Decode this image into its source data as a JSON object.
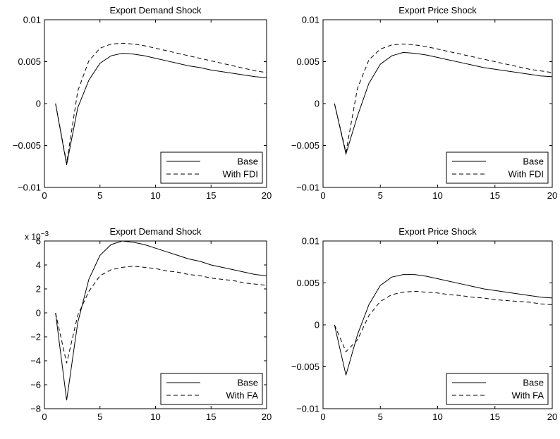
{
  "chart_data": [
    {
      "type": "line",
      "title": "Export Demand Shock",
      "xlim": [
        0,
        20
      ],
      "ylim": [
        -0.01,
        0.01
      ],
      "xticks": [
        0,
        5,
        10,
        15,
        20
      ],
      "yticks": [
        -0.01,
        -0.005,
        0,
        0.005,
        0.01
      ],
      "yticklabels": [
        "−0.01",
        "−0.005",
        "0",
        "0.005",
        "0.01"
      ],
      "exponent_label": "",
      "legend_position": "bottom-right",
      "x": [
        1,
        2,
        3,
        4,
        5,
        6,
        7,
        8,
        9,
        10,
        11,
        12,
        13,
        14,
        15,
        16,
        17,
        18,
        19,
        20
      ],
      "series": [
        {
          "name": "Base",
          "style": "solid",
          "values": [
            0,
            -0.0073,
            -0.0005,
            0.0028,
            0.0048,
            0.0057,
            0.006,
            0.0059,
            0.0057,
            0.0054,
            0.0051,
            0.0048,
            0.0045,
            0.0043,
            0.004,
            0.0038,
            0.0036,
            0.0034,
            0.0032,
            0.0031
          ]
        },
        {
          "name": "With FDI",
          "style": "dashed",
          "values": [
            0,
            -0.0071,
            0.0015,
            0.0051,
            0.0066,
            0.0071,
            0.0072,
            0.0071,
            0.0069,
            0.0066,
            0.0063,
            0.006,
            0.0057,
            0.0054,
            0.0051,
            0.0048,
            0.0045,
            0.0042,
            0.0039,
            0.0037
          ]
        }
      ]
    },
    {
      "type": "line",
      "title": "Export Price Shock",
      "xlim": [
        0,
        20
      ],
      "ylim": [
        -0.01,
        0.01
      ],
      "xticks": [
        0,
        5,
        10,
        15,
        20
      ],
      "yticks": [
        -0.01,
        -0.005,
        0,
        0.005,
        0.01
      ],
      "yticklabels": [
        "−0.01",
        "−0.005",
        "0",
        "0.005",
        "0.01"
      ],
      "exponent_label": "",
      "legend_position": "bottom-right",
      "x": [
        1,
        2,
        3,
        4,
        5,
        6,
        7,
        8,
        9,
        10,
        11,
        12,
        13,
        14,
        15,
        16,
        17,
        18,
        19,
        20
      ],
      "series": [
        {
          "name": "Base",
          "style": "solid",
          "values": [
            0,
            -0.006,
            -0.0015,
            0.0024,
            0.0047,
            0.0057,
            0.0061,
            0.006,
            0.0058,
            0.0055,
            0.0052,
            0.0049,
            0.0046,
            0.0043,
            0.0041,
            0.0039,
            0.0037,
            0.0035,
            0.0033,
            0.0032
          ]
        },
        {
          "name": "With FDI",
          "style": "dashed",
          "values": [
            0,
            -0.0058,
            0.0018,
            0.0052,
            0.0065,
            0.007,
            0.0071,
            0.007,
            0.0068,
            0.0065,
            0.0062,
            0.0059,
            0.0056,
            0.0053,
            0.005,
            0.0047,
            0.0044,
            0.0041,
            0.0039,
            0.0037
          ]
        }
      ]
    },
    {
      "type": "line",
      "title": "Export Demand Shock",
      "xlim": [
        0,
        20
      ],
      "ylim": [
        -8,
        6
      ],
      "xticks": [
        0,
        5,
        10,
        15,
        20
      ],
      "yticks": [
        -8,
        -6,
        -4,
        -2,
        0,
        2,
        4,
        6
      ],
      "yticklabels": [
        "−8",
        "−6",
        "−4",
        "−2",
        "0",
        "2",
        "4",
        "6"
      ],
      "exponent_label": "x 10",
      "exponent_power": "−3",
      "legend_position": "bottom-right",
      "x": [
        1,
        2,
        3,
        4,
        5,
        6,
        7,
        8,
        9,
        10,
        11,
        12,
        13,
        14,
        15,
        16,
        17,
        18,
        19,
        20
      ],
      "series": [
        {
          "name": "Base",
          "style": "solid",
          "values": [
            0,
            -7.3,
            -0.8,
            2.8,
            4.8,
            5.7,
            6.0,
            5.9,
            5.7,
            5.4,
            5.1,
            4.8,
            4.5,
            4.3,
            4.0,
            3.8,
            3.6,
            3.4,
            3.2,
            3.1
          ]
        },
        {
          "name": "With FA",
          "style": "dashed",
          "values": [
            0,
            -4.2,
            -0.2,
            1.8,
            3.1,
            3.6,
            3.8,
            3.9,
            3.8,
            3.7,
            3.5,
            3.4,
            3.2,
            3.1,
            2.9,
            2.8,
            2.7,
            2.5,
            2.4,
            2.3
          ]
        }
      ]
    },
    {
      "type": "line",
      "title": "Export Price Shock",
      "xlim": [
        0,
        20
      ],
      "ylim": [
        -0.01,
        0.01
      ],
      "xticks": [
        0,
        5,
        10,
        15,
        20
      ],
      "yticks": [
        -0.01,
        -0.005,
        0,
        0.005,
        0.01
      ],
      "yticklabels": [
        "−0.01",
        "−0.005",
        "0",
        "0.005",
        "0.01"
      ],
      "exponent_label": "",
      "legend_position": "bottom-right",
      "x": [
        1,
        2,
        3,
        4,
        5,
        6,
        7,
        8,
        9,
        10,
        11,
        12,
        13,
        14,
        15,
        16,
        17,
        18,
        19,
        20
      ],
      "series": [
        {
          "name": "Base",
          "style": "solid",
          "values": [
            0,
            -0.006,
            -0.0012,
            0.0024,
            0.0047,
            0.0057,
            0.006,
            0.006,
            0.0058,
            0.0055,
            0.0052,
            0.0049,
            0.0046,
            0.0043,
            0.0041,
            0.0039,
            0.0037,
            0.0035,
            0.0033,
            0.0032
          ]
        },
        {
          "name": "With FA",
          "style": "dashed",
          "values": [
            0,
            -0.0032,
            -0.0018,
            0.0011,
            0.0028,
            0.0036,
            0.0039,
            0.004,
            0.0039,
            0.0038,
            0.0036,
            0.0035,
            0.0033,
            0.0032,
            0.003,
            0.0029,
            0.0028,
            0.0027,
            0.0025,
            0.0024
          ]
        }
      ]
    }
  ]
}
